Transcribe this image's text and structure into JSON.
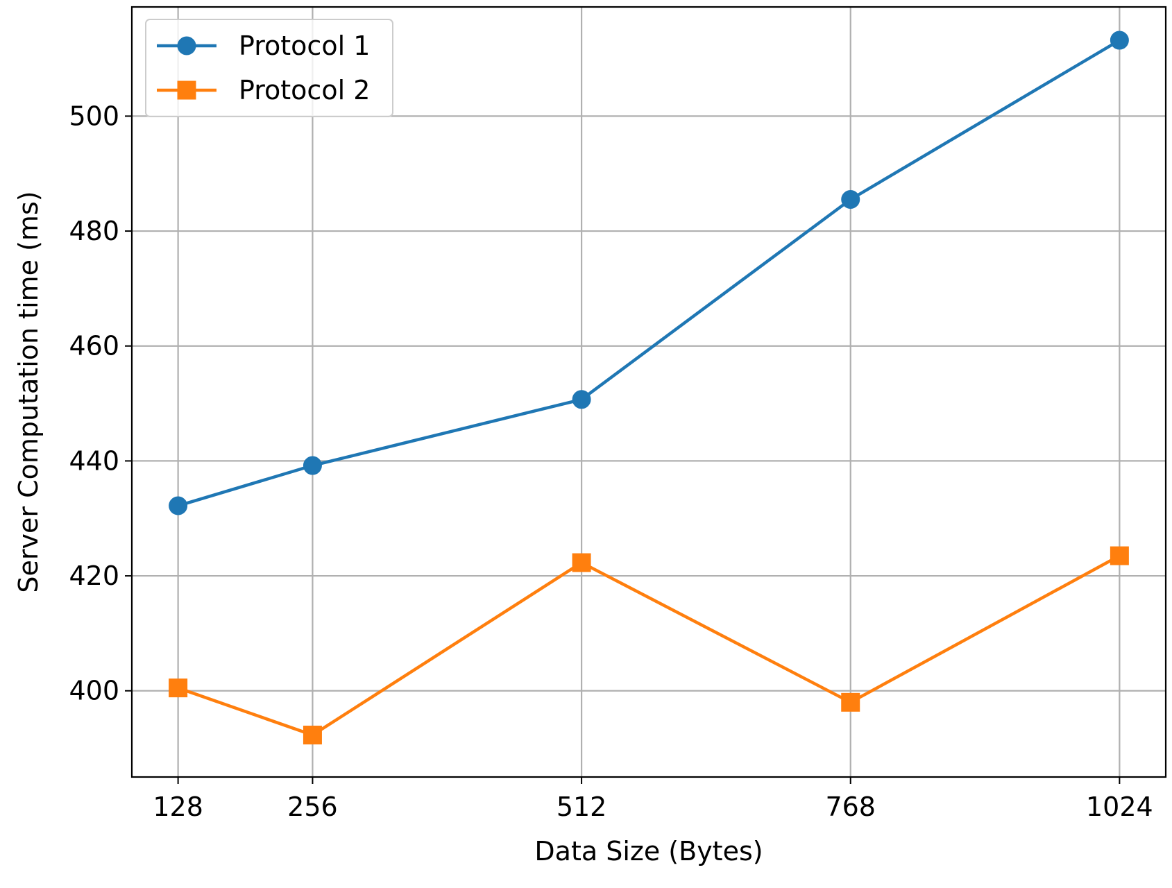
{
  "chart_data": {
    "type": "line",
    "title": "",
    "xlabel": "Data Size (Bytes)",
    "ylabel": "Server Computation time (ms)",
    "x": [
      128,
      256,
      512,
      768,
      1024
    ],
    "x_tick_labels": [
      "128",
      "256",
      "512",
      "768",
      "1024"
    ],
    "xlim": [
      84,
      1068
    ],
    "y_ticks": [
      400,
      420,
      440,
      460,
      480,
      500
    ],
    "y_tick_labels": [
      "400",
      "420",
      "440",
      "460",
      "480",
      "500"
    ],
    "ylim": [
      385,
      519
    ],
    "grid": true,
    "legend_position": "top-left",
    "series": [
      {
        "name": "Protocol 1",
        "color": "#1f77b4",
        "marker": "circle",
        "values": [
          432.2,
          439.2,
          450.7,
          485.5,
          513.2
        ]
      },
      {
        "name": "Protocol 2",
        "color": "#ff7f0e",
        "marker": "square",
        "values": [
          400.5,
          392.3,
          422.3,
          398.0,
          423.5
        ]
      }
    ]
  }
}
